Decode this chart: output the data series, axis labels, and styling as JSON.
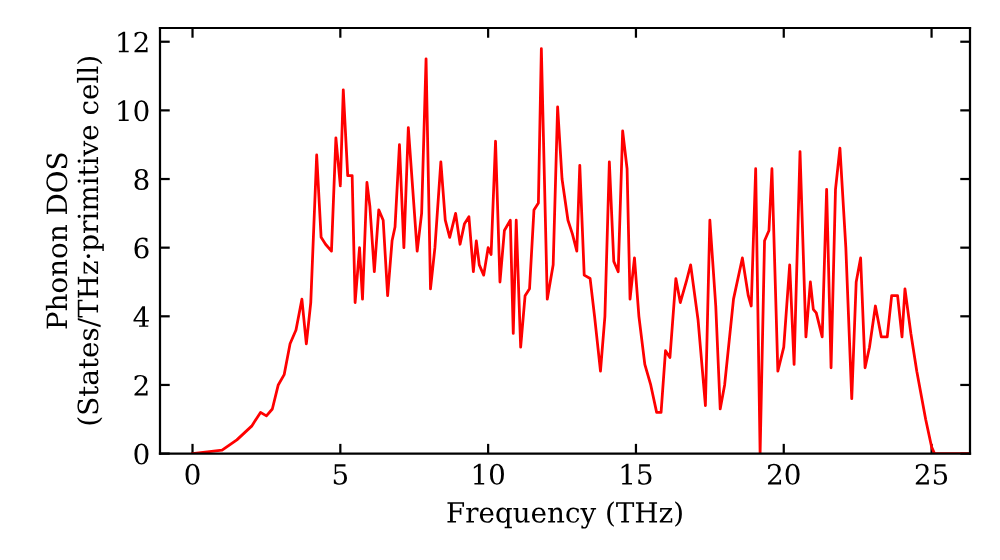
{
  "chart_data": {
    "type": "line",
    "xlabel": "Frequency (THz)",
    "ylabel": "Phonon DOS\n(States/THz·primitive cell)",
    "xlim": [
      -1.1,
      26.3
    ],
    "ylim": [
      0,
      12.4
    ],
    "xticks": [
      0,
      5,
      10,
      15,
      20,
      25
    ],
    "yticks": [
      0,
      2,
      4,
      6,
      8,
      10,
      12
    ],
    "grid": false,
    "marker": "none",
    "line_style": "solid",
    "series": [
      {
        "color": "#ff0000",
        "x": [
          0,
          1,
          1.5,
          2,
          2.3,
          2.5,
          2.7,
          2.9,
          3.1,
          3.3,
          3.5,
          3.7,
          3.85,
          4.0,
          4.2,
          4.35,
          4.5,
          4.7,
          4.85,
          5.0,
          5.1,
          5.25,
          5.4,
          5.5,
          5.65,
          5.75,
          5.9,
          6.0,
          6.15,
          6.3,
          6.45,
          6.6,
          6.75,
          6.85,
          7.0,
          7.15,
          7.3,
          7.45,
          7.6,
          7.75,
          7.9,
          8.05,
          8.2,
          8.4,
          8.55,
          8.7,
          8.9,
          9.05,
          9.2,
          9.35,
          9.5,
          9.6,
          9.7,
          9.85,
          10.0,
          10.1,
          10.25,
          10.4,
          10.55,
          10.75,
          10.85,
          10.95,
          11.1,
          11.25,
          11.4,
          11.55,
          11.7,
          11.8,
          12.0,
          12.2,
          12.35,
          12.5,
          12.7,
          12.85,
          13.0,
          13.1,
          13.25,
          13.45,
          13.6,
          13.8,
          13.95,
          14.1,
          14.25,
          14.4,
          14.55,
          14.7,
          14.8,
          14.95,
          15.1,
          15.3,
          15.5,
          15.7,
          15.85,
          16.0,
          16.15,
          16.35,
          16.5,
          16.7,
          16.85,
          17.1,
          17.35,
          17.5,
          17.7,
          17.85,
          18.0,
          18.3,
          18.6,
          18.8,
          18.9,
          19.05,
          19.2,
          19.35,
          19.5,
          19.6,
          19.8,
          20.0,
          20.2,
          20.35,
          20.55,
          20.75,
          20.9,
          21.0,
          21.1,
          21.3,
          21.45,
          21.6,
          21.75,
          21.9,
          22.1,
          22.3,
          22.45,
          22.6,
          22.75,
          22.9,
          23.1,
          23.3,
          23.5,
          23.65,
          23.85,
          24.0,
          24.1,
          24.3,
          24.5,
          24.8,
          25.0,
          25.1,
          26.3
        ],
        "values": [
          0,
          0.1,
          0.4,
          0.8,
          1.2,
          1.1,
          1.3,
          2.0,
          2.3,
          3.2,
          3.6,
          4.5,
          3.2,
          4.4,
          8.7,
          6.3,
          6.1,
          5.9,
          9.2,
          7.8,
          10.6,
          8.1,
          8.1,
          4.4,
          6.0,
          4.5,
          7.9,
          7.2,
          5.3,
          7.1,
          6.8,
          4.6,
          6.2,
          6.6,
          9.0,
          6.0,
          9.5,
          7.7,
          5.9,
          7.0,
          11.5,
          4.8,
          6.0,
          8.5,
          6.8,
          6.3,
          7.0,
          6.1,
          6.7,
          6.9,
          5.3,
          6.2,
          5.5,
          5.2,
          6.0,
          5.8,
          9.1,
          5.0,
          6.5,
          6.8,
          3.5,
          6.8,
          3.1,
          4.6,
          4.8,
          7.1,
          7.3,
          11.8,
          4.5,
          5.5,
          10.1,
          8.0,
          6.8,
          6.4,
          5.9,
          8.4,
          5.2,
          5.1,
          4.0,
          2.4,
          4.0,
          8.5,
          5.6,
          5.3,
          9.4,
          8.3,
          4.5,
          5.7,
          4.0,
          2.6,
          2.0,
          1.2,
          1.2,
          3.0,
          2.8,
          5.1,
          4.4,
          5.0,
          5.5,
          3.9,
          1.4,
          6.8,
          4.3,
          1.3,
          2.0,
          4.5,
          5.7,
          4.6,
          4.3,
          8.3,
          0.0,
          6.2,
          6.5,
          8.3,
          2.4,
          3.1,
          5.5,
          2.6,
          8.8,
          3.4,
          5.0,
          4.2,
          4.1,
          3.4,
          7.7,
          2.5,
          7.7,
          8.9,
          6.0,
          1.6,
          5.0,
          5.7,
          2.5,
          3.1,
          4.3,
          3.4,
          3.4,
          4.6,
          4.6,
          3.4,
          4.8,
          3.5,
          2.4,
          1.0,
          0.2,
          0.0,
          0.0
        ]
      }
    ]
  }
}
